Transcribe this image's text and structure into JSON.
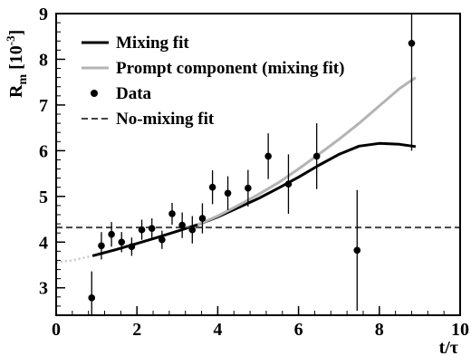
{
  "chart_data": {
    "type": "scatter",
    "xlabel": "t/τ",
    "ylabel": "R_m [10^-3]",
    "ylabel_parts": {
      "main": "R",
      "sub": "m",
      "unit_open": " [10",
      "sup": "-3",
      "unit_close": "]"
    },
    "xlim": [
      0,
      10
    ],
    "ylim": [
      2.4,
      9.0
    ],
    "x_ticks": [
      0,
      2,
      4,
      6,
      8,
      10
    ],
    "y_ticks": [
      3,
      4,
      5,
      6,
      7,
      8,
      9
    ],
    "grid": false,
    "legend_position": "top-left",
    "legend": [
      {
        "label": "Mixing fit",
        "style": "solid-black"
      },
      {
        "label": "Prompt component (mixing fit)",
        "style": "solid-gray"
      },
      {
        "label": "Data",
        "style": "marker"
      },
      {
        "label": "No-mixing fit",
        "style": "dashed"
      }
    ],
    "series": [
      {
        "name": "Data",
        "kind": "points",
        "color": "#000000",
        "points": [
          {
            "x": 0.88,
            "y": 2.78,
            "err": 0.58
          },
          {
            "x": 1.12,
            "y": 3.92,
            "err": 0.3
          },
          {
            "x": 1.37,
            "y": 4.17,
            "err": 0.27
          },
          {
            "x": 1.62,
            "y": 4.0,
            "err": 0.22
          },
          {
            "x": 1.87,
            "y": 3.9,
            "err": 0.2
          },
          {
            "x": 2.12,
            "y": 4.27,
            "err": 0.22
          },
          {
            "x": 2.37,
            "y": 4.3,
            "err": 0.22
          },
          {
            "x": 2.62,
            "y": 4.05,
            "err": 0.2
          },
          {
            "x": 2.87,
            "y": 4.62,
            "err": 0.24
          },
          {
            "x": 3.12,
            "y": 4.37,
            "err": 0.28
          },
          {
            "x": 3.37,
            "y": 4.27,
            "err": 0.3
          },
          {
            "x": 3.62,
            "y": 4.52,
            "err": 0.33
          },
          {
            "x": 3.87,
            "y": 5.2,
            "err": 0.37
          },
          {
            "x": 4.25,
            "y": 5.07,
            "err": 0.37
          },
          {
            "x": 4.75,
            "y": 5.18,
            "err": 0.4
          },
          {
            "x": 5.25,
            "y": 5.88,
            "err": 0.5
          },
          {
            "x": 5.75,
            "y": 5.27,
            "err": 0.65
          },
          {
            "x": 6.45,
            "y": 5.88,
            "err": 0.72
          },
          {
            "x": 7.45,
            "y": 3.82,
            "err": 1.32
          },
          {
            "x": 8.8,
            "y": 8.35,
            "err": 2.35
          }
        ]
      },
      {
        "name": "Mixing fit",
        "kind": "line",
        "color": "#000000",
        "x": [
          0.9,
          1.5,
          2.0,
          2.5,
          3.0,
          3.5,
          4.0,
          4.5,
          5.0,
          5.5,
          6.0,
          6.5,
          7.0,
          7.5,
          8.0,
          8.5,
          8.9
        ],
        "y": [
          3.7,
          3.84,
          3.97,
          4.1,
          4.24,
          4.38,
          4.55,
          4.75,
          4.95,
          5.18,
          5.42,
          5.68,
          5.92,
          6.1,
          6.16,
          6.14,
          6.09
        ]
      },
      {
        "name": "Mixing fit extrapolation",
        "kind": "dotted",
        "color": "#c8c8c8",
        "x": [
          0.0,
          0.2,
          0.4,
          0.6,
          0.8,
          0.9
        ],
        "y": [
          3.55,
          3.58,
          3.6,
          3.64,
          3.68,
          3.7
        ]
      },
      {
        "name": "Prompt component (mixing fit)",
        "kind": "line",
        "color": "#b4b4b4",
        "x": [
          3.5,
          4.0,
          4.5,
          5.0,
          5.5,
          6.0,
          6.5,
          7.0,
          7.5,
          8.0,
          8.5,
          8.9
        ],
        "y": [
          4.38,
          4.57,
          4.8,
          5.04,
          5.3,
          5.6,
          5.92,
          6.25,
          6.6,
          6.98,
          7.36,
          7.6
        ]
      },
      {
        "name": "No-mixing fit",
        "kind": "hline",
        "color": "#444444",
        "y": 4.32
      }
    ]
  }
}
